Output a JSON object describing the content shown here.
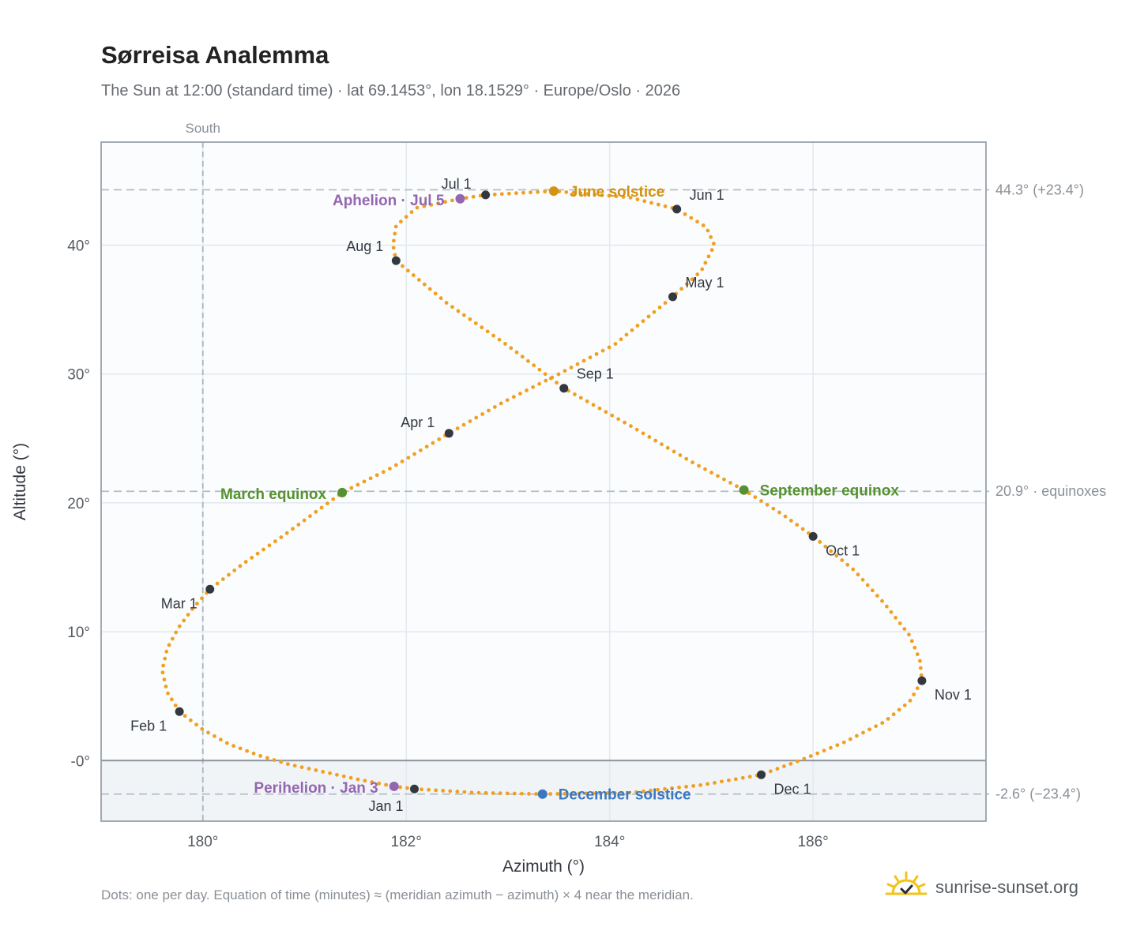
{
  "header": {
    "title": "Sørreisa Analemma",
    "subtitle": "The Sun at 12:00 (standard time) · lat 69.1453°, lon 18.1529° · Europe/Oslo · 2026"
  },
  "footer": {
    "note": "Dots: one per day. Equation of time (minutes) ≈ (meridian azimuth − azimuth) × 4 near the meridian.",
    "brand": "sunrise-sunset.org",
    "brand_icon": "sun-check-icon"
  },
  "colors": {
    "path": "#f0a020",
    "month_dot": "#333740",
    "solstice_june": "#d4920e",
    "solstice_december": "#3a78c0",
    "equinox": "#559130",
    "apsis": "#9466b0",
    "grid": "#e3e8ee",
    "frame": "#98a1ab",
    "plot_bg": "#fafcfe",
    "below_horizon_bg": "#f1f4f7"
  },
  "chart_data": {
    "type": "scatter",
    "xlabel": "Azimuth (°)",
    "ylabel": "Altitude (°)",
    "xlim": [
      179,
      187.7
    ],
    "ylim": [
      -4.7,
      48
    ],
    "x_ticks": [
      {
        "value": 180,
        "label": "180°"
      },
      {
        "value": 182,
        "label": "182°"
      },
      {
        "value": 184,
        "label": "184°"
      },
      {
        "value": 186,
        "label": "186°"
      }
    ],
    "y_ticks": [
      {
        "value": 0,
        "label": "-0°"
      },
      {
        "value": 10,
        "label": "10°"
      },
      {
        "value": 20,
        "label": "20°"
      },
      {
        "value": 30,
        "label": "30°"
      },
      {
        "value": 40,
        "label": "40°"
      }
    ],
    "grid": true,
    "south_marker": {
      "azimuth": 180,
      "label": "South"
    },
    "reference_lines": [
      {
        "altitude": 44.3,
        "label": "44.3° (+23.4°)"
      },
      {
        "altitude": 20.9,
        "label": "20.9° · equinoxes"
      },
      {
        "altitude": -2.6,
        "label": "-2.6° (−23.4°)"
      }
    ],
    "horizon_altitude": 0,
    "month_points": [
      {
        "label": "Jan 1",
        "az": 182.08,
        "alt": -2.2
      },
      {
        "label": "Feb 1",
        "az": 179.77,
        "alt": 3.8
      },
      {
        "label": "Mar 1",
        "az": 180.07,
        "alt": 13.3
      },
      {
        "label": "Apr 1",
        "az": 182.42,
        "alt": 25.4
      },
      {
        "label": "May 1",
        "az": 184.62,
        "alt": 36.0
      },
      {
        "label": "Jun 1",
        "az": 184.66,
        "alt": 42.8
      },
      {
        "label": "Jul 1",
        "az": 182.78,
        "alt": 43.9
      },
      {
        "label": "Aug 1",
        "az": 181.9,
        "alt": 38.8
      },
      {
        "label": "Sep 1",
        "az": 183.55,
        "alt": 28.9
      },
      {
        "label": "Oct 1",
        "az": 186.0,
        "alt": 17.4
      },
      {
        "label": "Nov 1",
        "az": 187.07,
        "alt": 6.2
      },
      {
        "label": "Dec 1",
        "az": 185.49,
        "alt": -1.1
      }
    ],
    "events": [
      {
        "label": "June solstice",
        "az": 183.45,
        "alt": 44.2,
        "kind": "solstice_june"
      },
      {
        "label": "December solstice",
        "az": 183.34,
        "alt": -2.6,
        "kind": "solstice_december"
      },
      {
        "label": "March equinox",
        "az": 181.37,
        "alt": 20.8,
        "kind": "equinox"
      },
      {
        "label": "September equinox",
        "az": 185.32,
        "alt": 21.0,
        "kind": "equinox"
      },
      {
        "label": "Aphelion · Jul 5",
        "az": 182.53,
        "alt": 43.6,
        "kind": "apsis"
      },
      {
        "label": "Perihelion · Jan 3",
        "az": 181.88,
        "alt": -2.0,
        "kind": "apsis"
      }
    ],
    "daily_path": [
      [
        182.08,
        -2.2
      ],
      [
        181.88,
        -2.0
      ],
      [
        181.55,
        -1.5
      ],
      [
        181.2,
        -0.9
      ],
      [
        180.85,
        -0.3
      ],
      [
        180.55,
        0.4
      ],
      [
        180.25,
        1.3
      ],
      [
        180.0,
        2.4
      ],
      [
        179.77,
        3.8
      ],
      [
        179.65,
        5.3
      ],
      [
        179.6,
        7.0
      ],
      [
        179.65,
        8.7
      ],
      [
        179.76,
        10.3
      ],
      [
        179.9,
        11.8
      ],
      [
        180.07,
        13.3
      ],
      [
        180.4,
        15.3
      ],
      [
        180.8,
        17.5
      ],
      [
        181.37,
        20.8
      ],
      [
        181.85,
        22.7
      ],
      [
        182.42,
        25.4
      ],
      [
        182.95,
        27.8
      ],
      [
        183.5,
        30.0
      ],
      [
        184.05,
        32.3
      ],
      [
        184.62,
        36.0
      ],
      [
        184.9,
        38.0
      ],
      [
        185.03,
        40.0
      ],
      [
        184.95,
        41.4
      ],
      [
        184.66,
        42.8
      ],
      [
        184.2,
        43.7
      ],
      [
        183.45,
        44.2
      ],
      [
        182.78,
        43.9
      ],
      [
        182.53,
        43.6
      ],
      [
        182.1,
        42.9
      ],
      [
        181.9,
        41.5
      ],
      [
        181.87,
        40.0
      ],
      [
        181.9,
        38.8
      ],
      [
        182.4,
        35.5
      ],
      [
        183.0,
        32.2
      ],
      [
        183.55,
        28.9
      ],
      [
        184.2,
        26.0
      ],
      [
        184.8,
        23.2
      ],
      [
        185.32,
        21.0
      ],
      [
        185.7,
        19.1
      ],
      [
        186.0,
        17.4
      ],
      [
        186.4,
        14.8
      ],
      [
        186.7,
        12.2
      ],
      [
        186.95,
        9.7
      ],
      [
        187.05,
        7.8
      ],
      [
        187.07,
        6.2
      ],
      [
        186.95,
        4.6
      ],
      [
        186.7,
        3.0
      ],
      [
        186.3,
        1.4
      ],
      [
        185.9,
        0.1
      ],
      [
        185.49,
        -1.1
      ],
      [
        184.9,
        -1.9
      ],
      [
        184.2,
        -2.5
      ],
      [
        183.34,
        -2.6
      ],
      [
        182.7,
        -2.5
      ],
      [
        182.08,
        -2.2
      ]
    ]
  }
}
